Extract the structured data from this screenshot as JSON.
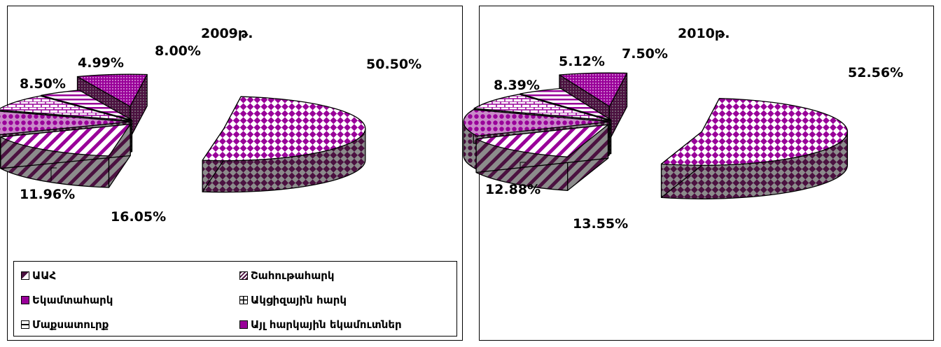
{
  "chart_data": [
    {
      "type": "pie",
      "title": "2009թ.",
      "categories": [
        "ԱԱՀ",
        "Շահութահարկ",
        "Եկամտահարկ",
        "Ակցիզային հարկ",
        "Մաքսատուրք",
        "Այլ հարկային եկամուտներ"
      ],
      "labels": [
        "50.50%",
        "16.05%",
        "11.96%",
        "8.50%",
        "4.99%",
        "8.00%"
      ],
      "values": [
        50.5,
        16.05,
        11.96,
        8.5,
        4.99,
        8.0
      ],
      "legend_position": "bottom",
      "exploded": true
    },
    {
      "type": "pie",
      "title": "2010թ.",
      "categories": [
        "ԱԱՀ",
        "Շահութահարկ",
        "Եկամտահարկ",
        "Ակցիզային հարկ",
        "Մաքսատուրք",
        "Այլ հարկային եկամուտներ"
      ],
      "labels": [
        "52.56%",
        "13.55%",
        "12.88%",
        "8.39%",
        "5.12%",
        "7.50%"
      ],
      "values": [
        52.56,
        13.55,
        12.88,
        8.39,
        5.12,
        7.5
      ],
      "exploded": true
    }
  ],
  "legend": {
    "items": [
      {
        "label": "ԱԱՀ"
      },
      {
        "label": "Շահութահարկ"
      },
      {
        "label": "Եկամտահարկ"
      },
      {
        "label": "Ակցիզային հարկ"
      },
      {
        "label": "Մաքսատուրք"
      },
      {
        "label": "Այլ հարկային եկամուտներ"
      }
    ]
  },
  "colors": {
    "purple": "#990099",
    "dark": "#4b1140",
    "grey": "#8c8c8c",
    "pink": "#c98ac9"
  }
}
